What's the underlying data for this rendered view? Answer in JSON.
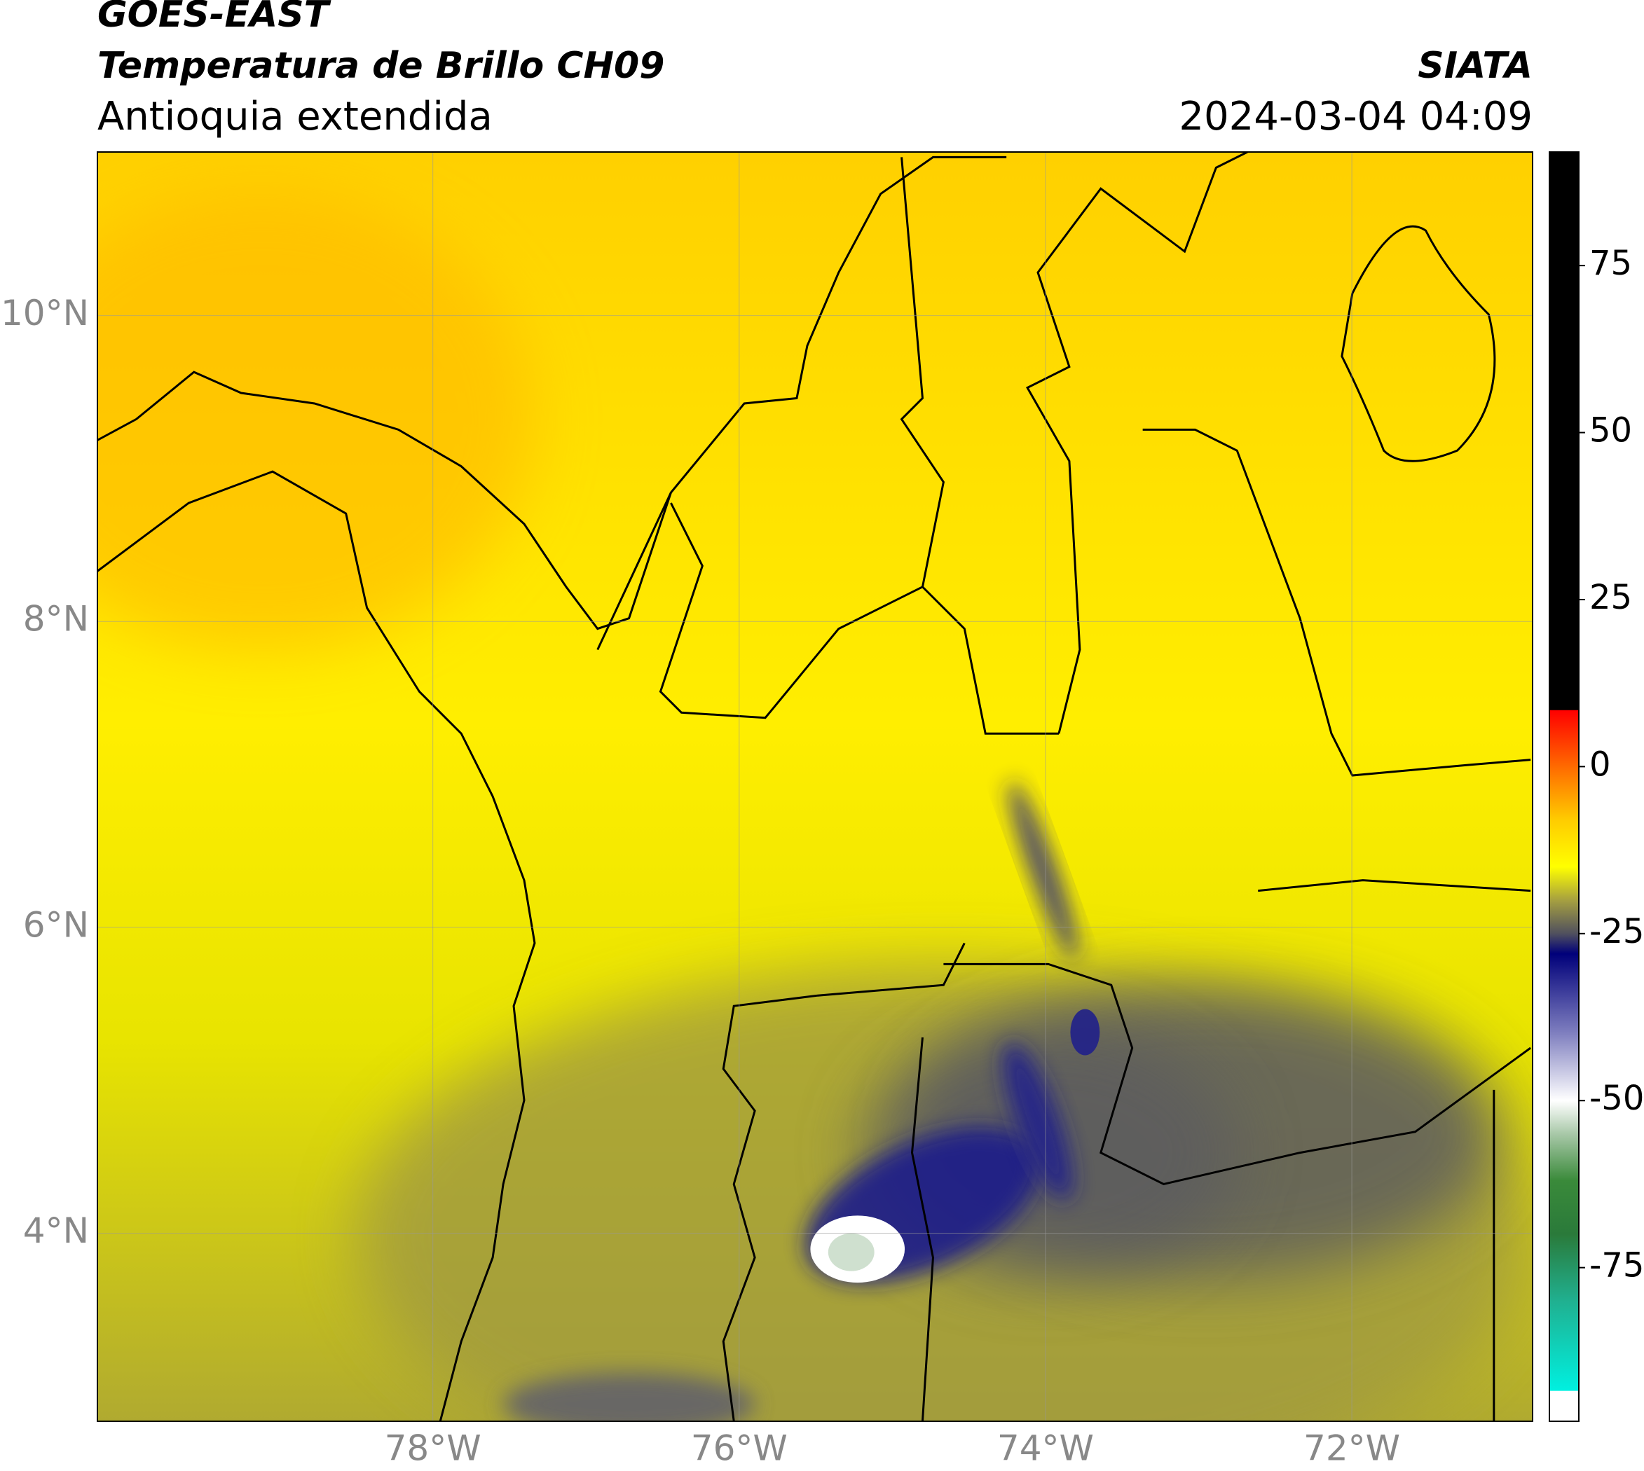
{
  "header": {
    "title": "GOES-EAST",
    "subtitle": "Temperatura de Brillo CH09",
    "region": "Antioquia extendida",
    "source": "SIATA",
    "datetime": "2024-03-04 04:09"
  },
  "map": {
    "xlim": [
      -80.19,
      -70.82
    ],
    "ylim": [
      2.77,
      11.07
    ],
    "xticks": [
      {
        "value": -78,
        "label": "78°W"
      },
      {
        "value": -76,
        "label": "76°W"
      },
      {
        "value": -74,
        "label": "74°W"
      },
      {
        "value": -72,
        "label": "72°W"
      }
    ],
    "yticks": [
      {
        "value": 4,
        "label": "4°N"
      },
      {
        "value": 6,
        "label": "6°N"
      },
      {
        "value": 8,
        "label": "8°N"
      },
      {
        "value": 10,
        "label": "10°N"
      }
    ],
    "grid": true
  },
  "colorbar": {
    "lim": [
      -98,
      92
    ],
    "ticks": [
      -75,
      -50,
      -25,
      0,
      25,
      50,
      75
    ],
    "stops": [
      {
        "value": 92,
        "color": "#000000"
      },
      {
        "value": 8.5,
        "color": "#000000"
      },
      {
        "value": 8.4,
        "color": "#ff0000"
      },
      {
        "value": 0,
        "color": "#ff6a00"
      },
      {
        "value": -8,
        "color": "#ffcc00"
      },
      {
        "value": -15,
        "color": "#ffff00"
      },
      {
        "value": -20,
        "color": "#a6a040"
      },
      {
        "value": -25,
        "color": "#50505e"
      },
      {
        "value": -28,
        "color": "#00007a"
      },
      {
        "value": -40,
        "color": "#8080c0"
      },
      {
        "value": -50,
        "color": "#ffffff"
      },
      {
        "value": -55,
        "color": "#a8c8a8"
      },
      {
        "value": -62,
        "color": "#3a8a3a"
      },
      {
        "value": -70,
        "color": "#2a7a3a"
      },
      {
        "value": -80,
        "color": "#20b090"
      },
      {
        "value": -93.4,
        "color": "#00f0e0"
      },
      {
        "value": -93.5,
        "color": "#ffffff"
      },
      {
        "value": -98,
        "color": "#ffffff"
      }
    ]
  }
}
